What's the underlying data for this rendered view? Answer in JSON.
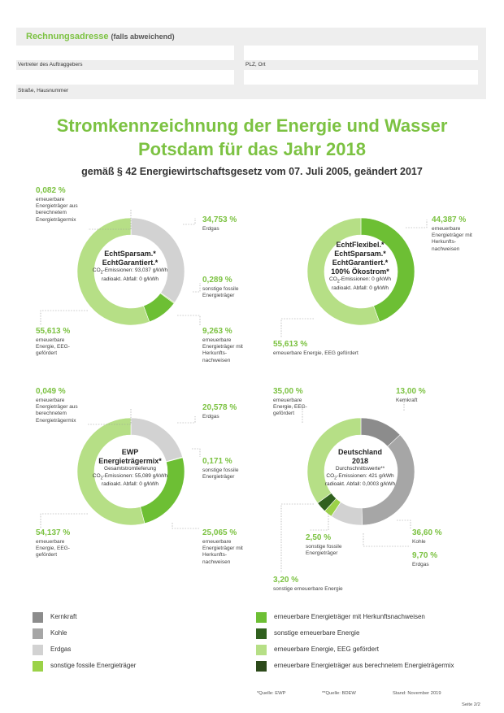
{
  "billing": {
    "title": "Rechnungsadresse",
    "title_note": "(falls abweichend)",
    "field_client": "Vertreter des Auftraggebers",
    "field_zip": "PLZ, Ort",
    "field_street": "Straße, Hausnummer"
  },
  "header": {
    "title_line1": "Stromkennzeichnung der Energie und Wasser",
    "title_line2": "Potsdam für das Jahr 2018",
    "subtitle": "gemäß § 42 Energiewirtschaftsgesetz vom 07. Juli 2005, geändert 2017"
  },
  "colors": {
    "kernkraft": "#8c8c8c",
    "kohle": "#a6a6a6",
    "erdgas": "#d2d2d2",
    "sonstige_fossile": "#9bd248",
    "herkunftsnachweise": "#6dbf34",
    "sonstige_erneuerbare": "#30601e",
    "eeg": "#b6df86",
    "berechnet": "#2c4a1a"
  },
  "charts": {
    "c1": {
      "title_line1": "EchtSparsam.*",
      "title_line2": "EchtGarantiert.*",
      "line1": "CO",
      "line1_sub": "2",
      "line1_rest": "-Emissionen: 93,037 g/kWh",
      "line2": "radioakt. Abfall: 0 g/kWh",
      "labels": {
        "berechnet_pct": "0,082 %",
        "berechnet_desc": "erneuerbare Energieträger aus berechnetem Energieträgermix",
        "erdgas_pct": "34,753 %",
        "erdgas_desc": "Erdgas",
        "fossil_pct": "0,289 %",
        "fossil_desc": "sonstige fossile Energieträger",
        "hkn_pct": "9,263 %",
        "hkn_desc": "erneuerbare Energieträger mit Herkunfts-nachweisen",
        "eeg_pct": "55,613 %",
        "eeg_desc": "erneuerbare Energie, EEG-gefördert"
      }
    },
    "c2": {
      "title_line1": "EchtFlexibel.*",
      "title_line2": "EchtSparsam.*",
      "title_line3": "EchtGarantiert.*",
      "title_line4": "100% Ökostrom*",
      "line1": "CO",
      "line1_sub": "2",
      "line1_rest": "-Emissionen: 0 g/kWh",
      "line2": "radioakt. Abfall: 0 g/kWh",
      "labels": {
        "hkn_pct": "44,387 %",
        "hkn_desc": "erneuerbare Energieträger mit Herkunfts-nachweisen",
        "eeg_pct": "55,613 %",
        "eeg_desc": "erneuerbare Energie, EEG gefördert"
      }
    },
    "c3": {
      "title_line1": "EWP",
      "title_line2": "Energieträgermix*",
      "line0": "Gesamtstromlieferung",
      "line1": "CO",
      "line1_sub": "2",
      "line1_rest": "-Emissionen: 55,089 g/kWh",
      "line2": "radioakt. Abfall: 0 g/kWh",
      "labels": {
        "berechnet_pct": "0,049 %",
        "berechnet_desc": "erneuerbare Energieträger aus berechnetem Energieträgermix",
        "erdgas_pct": "20,578 %",
        "erdgas_desc": "Erdgas",
        "fossil_pct": "0,171 %",
        "fossil_desc": "sonstige fossile Energieträger",
        "hkn_pct": "25,065 %",
        "hkn_desc": "erneuerbare Energieträger mit Herkunfts-nachweisen",
        "eeg_pct": "54,137 %",
        "eeg_desc": "erneuerbare Energie, EEG-gefördert"
      }
    },
    "c4": {
      "title_line1": "Deutschland",
      "title_line2": "2018",
      "line0": "Durchschnittswerte**",
      "line1": "CO",
      "line1_sub": "2",
      "line1_rest": "-Emissionen: 421 g/kWh",
      "line2": "radioakt. Abfall: 0,0003 g/kWh",
      "labels": {
        "eeg_pct": "35,00 %",
        "eeg_desc": "erneuerbare Energie, EEG-gefördert",
        "kern_pct": "13,00 %",
        "kern_desc": "Kernkraft",
        "kohle_pct": "36,60 %",
        "kohle_desc": "Kohle",
        "erdgas_pct": "9,70 %",
        "erdgas_desc": "Erdgas",
        "fossil_pct": "2,50 %",
        "fossil_desc": "sonstige fossile Energieträger",
        "sonst_pct": "3,20 %",
        "sonst_desc": "sonstige erneuerbare Energie"
      }
    }
  },
  "chart_data": [
    {
      "type": "pie",
      "title": "EchtSparsam.* EchtGarantiert.*",
      "categories": [
        "erneuerbare Energieträger aus berechnetem Energieträgermix",
        "Erdgas",
        "sonstige fossile Energieträger",
        "erneuerbare Energieträger mit Herkunftsnachweisen",
        "erneuerbare Energie, EEG-gefördert"
      ],
      "values": [
        0.082,
        34.753,
        0.289,
        9.263,
        55.613
      ],
      "colors": [
        "#2c4a1a",
        "#d2d2d2",
        "#9bd248",
        "#6dbf34",
        "#b6df86"
      ]
    },
    {
      "type": "pie",
      "title": "EchtFlexibel.* EchtSparsam.* EchtGarantiert.* 100% Ökostrom*",
      "categories": [
        "erneuerbare Energieträger mit Herkunftsnachweisen",
        "erneuerbare Energie, EEG gefördert"
      ],
      "values": [
        44.387,
        55.613
      ],
      "colors": [
        "#6dbf34",
        "#b6df86"
      ]
    },
    {
      "type": "pie",
      "title": "EWP Energieträgermix*",
      "categories": [
        "erneuerbare Energieträger aus berechnetem Energieträgermix",
        "Erdgas",
        "sonstige fossile Energieträger",
        "erneuerbare Energieträger mit Herkunftsnachweisen",
        "erneuerbare Energie, EEG-gefördert"
      ],
      "values": [
        0.049,
        20.578,
        0.171,
        25.065,
        54.137
      ],
      "colors": [
        "#2c4a1a",
        "#d2d2d2",
        "#9bd248",
        "#6dbf34",
        "#b6df86"
      ]
    },
    {
      "type": "pie",
      "title": "Deutschland 2018",
      "categories": [
        "Kernkraft",
        "Kohle",
        "Erdgas",
        "sonstige fossile Energieträger",
        "sonstige erneuerbare Energie",
        "erneuerbare Energie, EEG-gefördert"
      ],
      "values": [
        13.0,
        36.6,
        9.7,
        2.5,
        3.2,
        35.0
      ],
      "colors": [
        "#8c8c8c",
        "#a6a6a6",
        "#d2d2d2",
        "#9bd248",
        "#30601e",
        "#b6df86"
      ]
    }
  ],
  "legend": {
    "left": [
      {
        "label": "Kernkraft",
        "color": "#8c8c8c"
      },
      {
        "label": "Kohle",
        "color": "#a6a6a6"
      },
      {
        "label": "Erdgas",
        "color": "#d2d2d2"
      },
      {
        "label": "sonstige fossile Energieträger",
        "color": "#9bd248"
      }
    ],
    "right": [
      {
        "label": "erneuerbare Energieträger mit Herkunftsnachweisen",
        "color": "#6dbf34"
      },
      {
        "label": "sonstige erneuerbare Energie",
        "color": "#30601e"
      },
      {
        "label": "erneuerbare Energie, EEG gefördert",
        "color": "#b6df86"
      },
      {
        "label": "erneuerbare Energieträger aus berechnetem Energieträgermix",
        "color": "#2c4a1a"
      }
    ]
  },
  "footer": {
    "source1": "*Quelle: EWP",
    "source2": "**Quelle: BDEW",
    "stand": "Stand: November 2019",
    "page": "Seite 2/2"
  }
}
